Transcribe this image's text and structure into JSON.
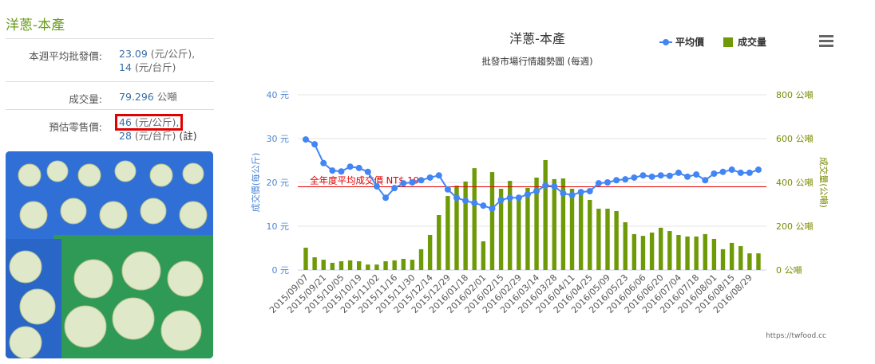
{
  "panel": {
    "title": "洋蔥-本產",
    "rows": [
      {
        "label": "本週平均批發價:",
        "lines": [
          {
            "value": 23.09,
            "unit": "(元/公斤),"
          },
          {
            "value": 14,
            "unit": "(元/台斤)"
          }
        ]
      },
      {
        "label": "成交量:",
        "lines": [
          {
            "value": 79.296,
            "unit": "公噸"
          }
        ]
      },
      {
        "label": "預估零售價:",
        "lines": [
          {
            "value": 46,
            "unit": "(元/公斤),"
          },
          {
            "value": 28,
            "unit": "(元/台斤)",
            "note": "(註)"
          }
        ]
      }
    ]
  },
  "chart_data": {
    "type": "bar-line",
    "title": "洋蔥-本產",
    "subtitle": "批發市場行情趨勢圖 (每週)",
    "y_label": "成交價(每公斤)",
    "y2_label": "成交量(公噸)",
    "credit": "https://twfood.cc",
    "plot_line": {
      "value": 19,
      "label": "全年度平均成交價 NT$ 19",
      "color": "#e00000"
    },
    "categories": [
      "2015/09/07",
      null,
      "2015/09/21",
      null,
      "2015/10/05",
      null,
      "2015/10/19",
      null,
      "2015/11/02",
      null,
      "2015/11/16",
      null,
      "2015/11/30",
      null,
      "2015/12/14",
      null,
      "2015/12/29",
      null,
      "2016/01/18",
      null,
      "2016/02/01",
      null,
      "2016/02/15",
      null,
      "2016/02/29",
      null,
      "2016/03/14",
      null,
      "2016/03/28",
      null,
      "2016/04/11",
      null,
      "2016/04/25",
      null,
      "2016/05/09",
      null,
      "2016/05/23",
      null,
      "2016/06/06",
      null,
      "2016/06/20",
      null,
      "2016/07/04",
      null,
      "2016/07/18",
      null,
      "2016/08/01",
      null,
      "2016/08/15",
      null,
      "2016/08/29",
      null
    ],
    "series": [
      {
        "name": "平均價",
        "type": "line",
        "color": "#4285f4",
        "values": [
          29.8,
          28.7,
          24.4,
          22.7,
          22.5,
          23.6,
          23.3,
          22.4,
          19.1,
          16.5,
          18.7,
          19.8,
          20,
          20.5,
          21.1,
          21.6,
          18.4,
          16.5,
          15.8,
          15.3,
          14.7,
          14,
          16,
          16.5,
          16.5,
          17.3,
          18,
          19.3,
          19.1,
          17.5,
          17.1,
          17.8,
          18,
          19.8,
          20,
          20.5,
          20.7,
          21.1,
          21.6,
          21.3,
          21.6,
          21.5,
          22.2,
          21.3,
          21.8,
          20.5,
          22,
          22.4,
          22.9,
          22.2,
          22.2,
          22.9
        ]
      },
      {
        "name": "成交量",
        "type": "bar",
        "axis": "y2",
        "color": "#6f9a07",
        "values": [
          102,
          58,
          47,
          33,
          40,
          44,
          40,
          25,
          25,
          40,
          44,
          51,
          47,
          95,
          160,
          251,
          338,
          385,
          404,
          465,
          131,
          447,
          371,
          407,
          342,
          375,
          422,
          502,
          415,
          418,
          371,
          367,
          320,
          280,
          280,
          269,
          218,
          164,
          156,
          171,
          193,
          178,
          160,
          153,
          153,
          164,
          142,
          95,
          124,
          109,
          76,
          76
        ]
      }
    ],
    "ylim": [
      0,
      40
    ],
    "yticks": [
      {
        "value": 0,
        "label": "0 元"
      },
      {
        "value": 10,
        "label": "10 元"
      },
      {
        "value": 20,
        "label": "20 元"
      },
      {
        "value": 30,
        "label": "30 元"
      },
      {
        "value": 40,
        "label": "40 元"
      }
    ],
    "y2lim": [
      0,
      800
    ],
    "y2ticks": [
      {
        "value": 0,
        "label": "0 公噸"
      },
      {
        "value": 200,
        "label": "200 公噸"
      },
      {
        "value": 400,
        "label": "400 公噸"
      },
      {
        "value": 600,
        "label": "600 公噸"
      },
      {
        "value": 800,
        "label": "800 公噸"
      }
    ],
    "legend": "top-right"
  }
}
